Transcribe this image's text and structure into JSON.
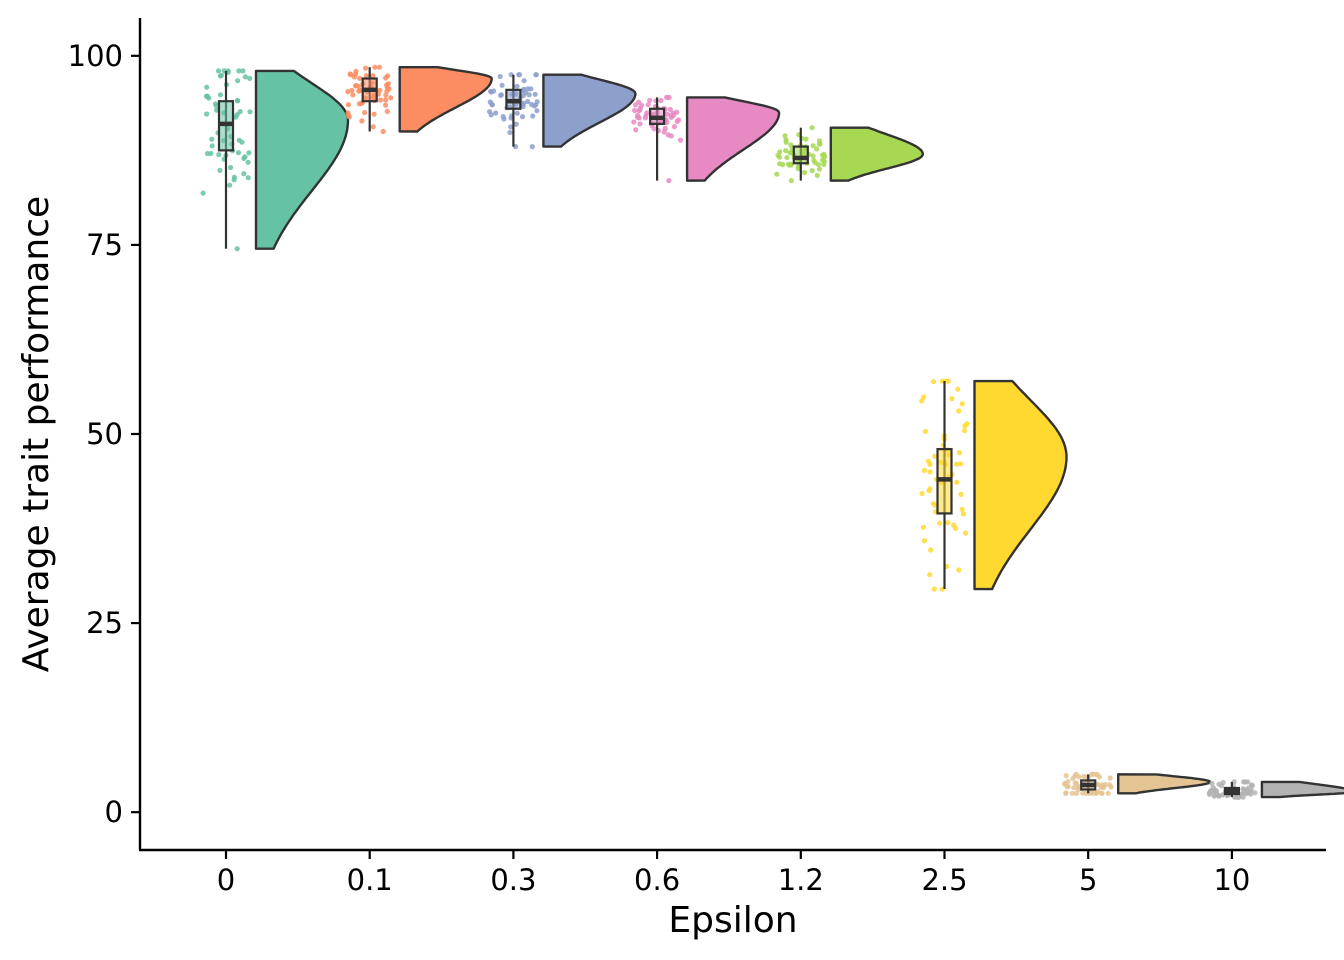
{
  "chart_data": {
    "type": "raincloud",
    "xlabel": "Epsilon",
    "ylabel": "Average trait performance",
    "categories": [
      "0",
      "0.1",
      "0.3",
      "0.6",
      "1.2",
      "2.5",
      "5",
      "10"
    ],
    "ylim": [
      -5,
      105
    ],
    "yticks": [
      0,
      25,
      50,
      75,
      100
    ],
    "grid": false,
    "legend": "none",
    "groups": [
      {
        "category": "0",
        "color": "#66C2A5",
        "min": 74.5,
        "q1": 87.5,
        "median": 91.0,
        "q3": 94.0,
        "max": 98.0,
        "density_peak": 91.5
      },
      {
        "category": "0.1",
        "color": "#FC8D62",
        "min": 90.0,
        "q1": 94.0,
        "median": 95.5,
        "q3": 97.0,
        "max": 98.5,
        "density_peak": 97.0
      },
      {
        "category": "0.3",
        "color": "#8DA0CB",
        "min": 88.0,
        "q1": 93.0,
        "median": 94.0,
        "q3": 95.5,
        "max": 97.5,
        "density_peak": 95.0
      },
      {
        "category": "0.6",
        "color": "#E78AC3",
        "min": 83.5,
        "q1": 91.0,
        "median": 91.8,
        "q3": 93.0,
        "max": 94.5,
        "density_peak": 92.5
      },
      {
        "category": "1.2",
        "color": "#A6D854",
        "min": 83.5,
        "q1": 85.8,
        "median": 86.5,
        "q3": 88.0,
        "max": 90.5,
        "density_peak": 87.0
      },
      {
        "category": "2.5",
        "color": "#FFD92F",
        "min": 29.5,
        "q1": 39.5,
        "median": 44.0,
        "q3": 48.0,
        "max": 57.0,
        "density_peak": 47.0
      },
      {
        "category": "5",
        "color": "#E5C494",
        "min": 2.5,
        "q1": 3.0,
        "median": 3.6,
        "q3": 4.2,
        "max": 5.0,
        "density_peak": 4.0
      },
      {
        "category": "10",
        "color": "#B3B3B3",
        "min": 2.0,
        "q1": 2.4,
        "median": 2.8,
        "q3": 3.2,
        "max": 4.0,
        "density_peak": 2.7
      }
    ]
  }
}
